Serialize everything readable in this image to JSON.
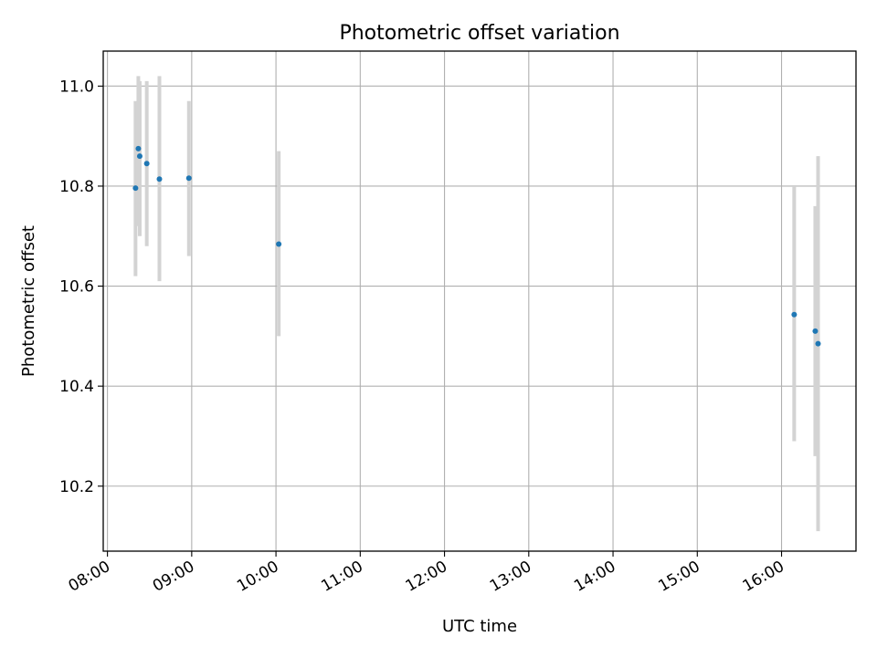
{
  "chart_data": {
    "type": "scatter",
    "title": "Photometric offset variation",
    "xlabel": "UTC time",
    "ylabel": "Photometric offset",
    "grid": true,
    "x_ticks": [
      "08:00",
      "09:00",
      "10:00",
      "11:00",
      "12:00",
      "13:00",
      "14:00",
      "15:00",
      "16:00"
    ],
    "y_ticks": [
      "10.2",
      "10.4",
      "10.6",
      "10.8",
      "11.0"
    ],
    "xlim": [
      "07:57",
      "16:53"
    ],
    "ylim": [
      10.07,
      11.07
    ],
    "marker_color": "#1f77b4",
    "errorbar_color": "#d3d3d3",
    "points": [
      {
        "x": "08:20",
        "y": 10.796,
        "err_low": 10.62,
        "err_high": 10.97
      },
      {
        "x": "08:22",
        "y": 10.875,
        "err_low": 10.72,
        "err_high": 11.02
      },
      {
        "x": "08:23",
        "y": 10.86,
        "err_low": 10.7,
        "err_high": 11.01
      },
      {
        "x": "08:28",
        "y": 10.845,
        "err_low": 10.68,
        "err_high": 11.01
      },
      {
        "x": "08:37",
        "y": 10.814,
        "err_low": 10.61,
        "err_high": 11.02
      },
      {
        "x": "08:58",
        "y": 10.816,
        "err_low": 10.66,
        "err_high": 10.97
      },
      {
        "x": "10:02",
        "y": 10.684,
        "err_low": 10.5,
        "err_high": 10.87
      },
      {
        "x": "16:09",
        "y": 10.543,
        "err_low": 10.29,
        "err_high": 10.8
      },
      {
        "x": "16:24",
        "y": 10.51,
        "err_low": 10.26,
        "err_high": 10.76
      },
      {
        "x": "16:26",
        "y": 10.485,
        "err_low": 10.11,
        "err_high": 10.86
      }
    ]
  }
}
